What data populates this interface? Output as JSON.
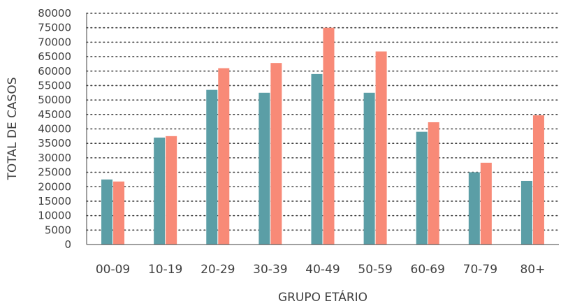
{
  "chart_data": {
    "type": "bar",
    "title": "",
    "xlabel": "GRUPO ETÁRIO",
    "ylabel": "TOTAL DE CASOS",
    "categories": [
      "00-09",
      "10-19",
      "20-29",
      "30-39",
      "40-49",
      "50-59",
      "60-69",
      "70-79",
      "80+"
    ],
    "series": [
      {
        "color": "#5b9ea6",
        "values": [
          22500,
          37000,
          53500,
          52500,
          59000,
          52500,
          39000,
          25000,
          22000
        ]
      },
      {
        "color": "#f88a77",
        "values": [
          21800,
          37500,
          61000,
          62800,
          75000,
          66800,
          42300,
          28300,
          44700
        ]
      }
    ],
    "ylim": [
      0,
      80000
    ],
    "yticks": [
      "0",
      "5000",
      "10000",
      "15000",
      "20000",
      "25000",
      "30000",
      "35000",
      "40000",
      "45000",
      "50000",
      "55000",
      "60000",
      "65000",
      "70000",
      "75000",
      "80000"
    ],
    "grid": true,
    "grid_style": "dotted",
    "legend": "none"
  }
}
